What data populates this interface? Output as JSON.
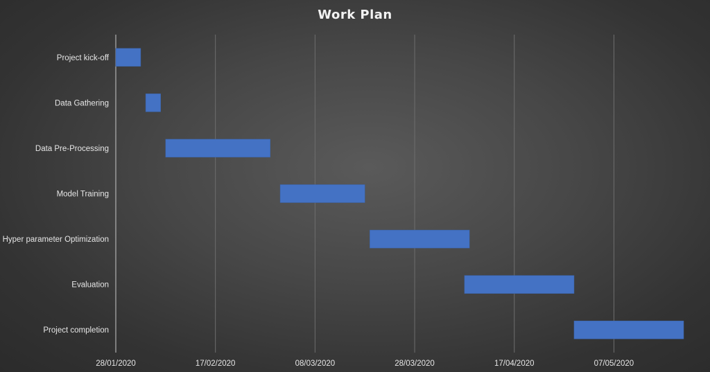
{
  "chart_data": {
    "type": "bar",
    "orientation": "horizontal-gantt",
    "title": "Work Plan",
    "categories": [
      "Project kick-off",
      "Data Gathering",
      "Data Pre-Processing",
      "Model Training",
      "Hyper parameter Optimization",
      "Evaluation",
      "Project completion"
    ],
    "series": [
      {
        "values": [
          {
            "start": "2020-01-28",
            "end": "2020-02-02"
          },
          {
            "start": "2020-02-03",
            "end": "2020-02-06"
          },
          {
            "start": "2020-02-07",
            "end": "2020-02-28"
          },
          {
            "start": "2020-03-01",
            "end": "2020-03-18"
          },
          {
            "start": "2020-03-19",
            "end": "2020-04-08"
          },
          {
            "start": "2020-04-07",
            "end": "2020-04-29"
          },
          {
            "start": "2020-04-29",
            "end": "2020-05-21"
          }
        ]
      }
    ],
    "x_ticks": [
      "28/01/2020",
      "17/02/2020",
      "08/03/2020",
      "28/03/2020",
      "17/04/2020",
      "07/05/2020"
    ],
    "xlim": [
      "2020-01-28",
      "2020-05-21"
    ],
    "xlabel": "",
    "ylabel": "",
    "grid": true,
    "legend": "none"
  },
  "colors": {
    "bar": "#4472c4",
    "bar_stroke": "#3a62a8",
    "text": "#e6e6e6",
    "title": "#f2f2f2",
    "gridline": "#6e6e6e",
    "axis": "#c8c8c8"
  }
}
